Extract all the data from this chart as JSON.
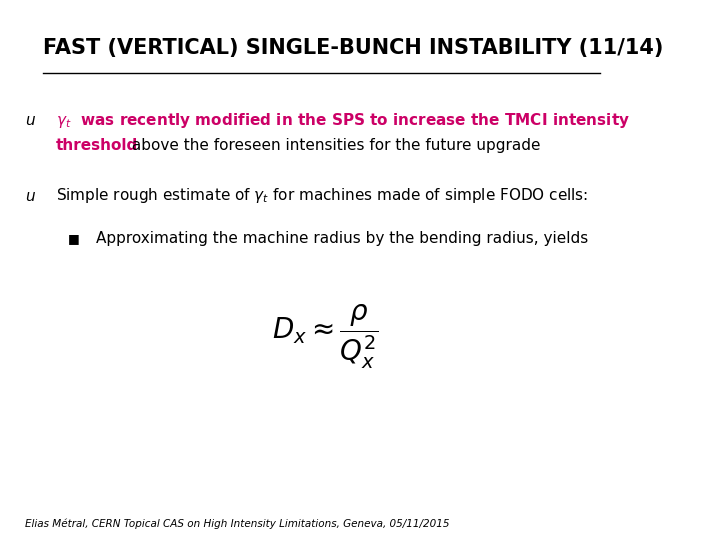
{
  "title": "FAST (VERTICAL) SINGLE-BUNCH INSTABILITY (11/14)",
  "title_fontsize": 15,
  "title_color": "#000000",
  "background_color": "#ffffff",
  "bullet_u": "u",
  "bullet1_pink_bold": "γₜ  was recently modified in the SPS to increase the TMCI intensity threshold",
  "bullet1_black": " above the foreseen intensities for the future upgrade",
  "bullet2_text": "Simple rough estimate of γₜ for machines made of simple FODO cells:",
  "sub_bullet": "Approximating the machine radius by the bending radius, yields",
  "formula": "$D_x \\approx \\dfrac{\\rho}{Q_x^2}$",
  "footer": "Elias Métral, CERN Topical CAS on High Intensity Limitations, Geneva, 05/11/2015",
  "pink_color": "#CC0066",
  "black_color": "#000000",
  "gray_color": "#555555"
}
